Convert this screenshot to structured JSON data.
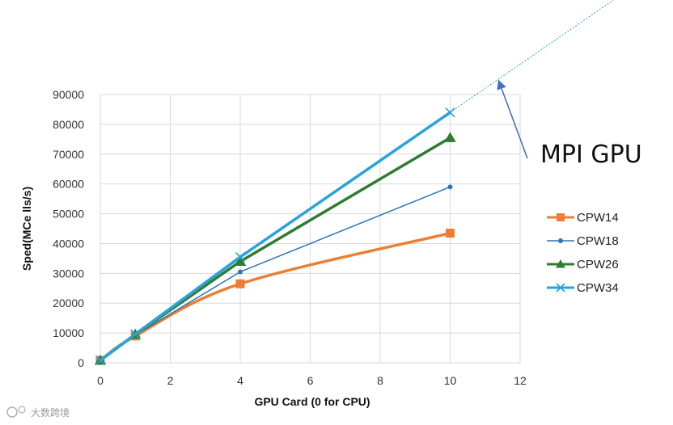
{
  "chart_data": {
    "type": "line",
    "xlabel": "GPU Card (0 for CPU)",
    "ylabel": "Sped(MCe lls/s)",
    "xlim": [
      0,
      12
    ],
    "ylim": [
      0,
      90000
    ],
    "xticks": [
      0,
      2,
      4,
      6,
      8,
      10,
      12
    ],
    "yticks": [
      0,
      10000,
      20000,
      30000,
      40000,
      50000,
      60000,
      70000,
      80000,
      90000
    ],
    "grid": true,
    "legend_position": "right",
    "series": [
      {
        "name": "CPW14",
        "color": "#ED7D31",
        "marker": "square",
        "smooth": true,
        "x": [
          0,
          1,
          4,
          10
        ],
        "y": [
          800,
          9000,
          26500,
          43500
        ]
      },
      {
        "name": "CPW18",
        "color": "#2E75B6",
        "marker": "circle",
        "x": [
          0,
          1,
          4,
          10
        ],
        "y": [
          800,
          9300,
          30500,
          59000
        ]
      },
      {
        "name": "CPW26",
        "color": "#2E7D32",
        "marker": "triangle",
        "x": [
          0,
          1,
          4,
          10
        ],
        "y": [
          800,
          9500,
          34000,
          75500
        ]
      },
      {
        "name": "CPW34",
        "color": "#29A3D9",
        "marker": "x",
        "x": [
          0,
          1,
          4,
          10
        ],
        "y": [
          800,
          9600,
          35500,
          84000
        ]
      }
    ],
    "annotation": {
      "text": "MPI GPU"
    }
  },
  "watermark": {
    "text": "大数跨境"
  }
}
